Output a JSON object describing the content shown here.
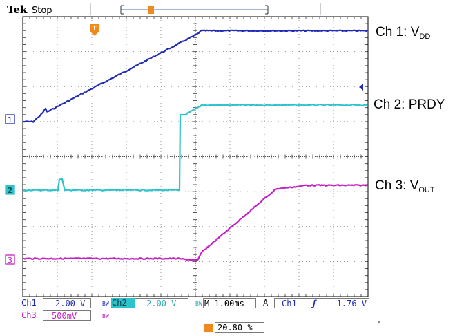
{
  "header": {
    "brand": "Tek",
    "state": "Stop"
  },
  "trigger_marker": "T",
  "channel_markers": [
    {
      "label": "1",
      "color": "#1f2bb5"
    },
    {
      "label": "2",
      "color": "#2cc3cc"
    },
    {
      "label": "3",
      "color": "#c41fc4"
    }
  ],
  "annotations": {
    "ch1": {
      "prefix": "Ch 1: V",
      "sub": "DD"
    },
    "ch2": {
      "prefix": "Ch 2: PRDY",
      "sub": ""
    },
    "ch3": {
      "prefix": "Ch 3: V",
      "sub": "OUT"
    }
  },
  "readouts": {
    "ch1_label": "Ch1",
    "ch1_scale": "2.00 V",
    "ch1_bw": "BW",
    "ch2_label": "Ch2",
    "ch2_scale": "2.00 V",
    "ch2_bw": "BW",
    "ch3_label": "Ch3",
    "ch3_scale": "500mV",
    "ch3_bw": "BW",
    "timebase": "M 1.00ms",
    "trigger_mode": "A",
    "trigger_source": "Ch1",
    "trigger_slope": "ʃ",
    "trigger_level": "1.76 V",
    "trigger_position": "20.80 %"
  },
  "colors": {
    "ch1": "#1f2bb5",
    "ch2": "#2cc3cc",
    "ch3": "#c41fc4",
    "trigger": "#f08a1a"
  }
}
